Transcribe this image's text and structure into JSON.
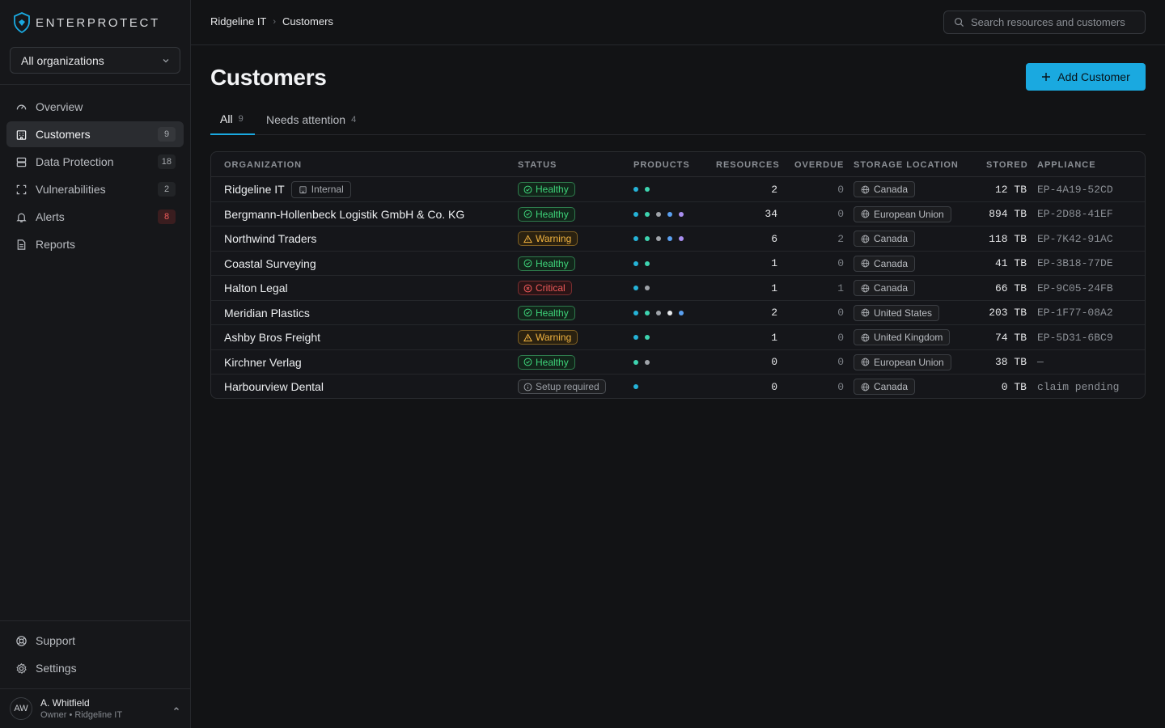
{
  "app": {
    "logo_text": "ENTERPROTECT"
  },
  "org_selector": {
    "value": "All organizations"
  },
  "nav": {
    "items": [
      {
        "label": "Overview",
        "icon": "gauge-icon",
        "badge": ""
      },
      {
        "label": "Customers",
        "icon": "building-icon",
        "badge": "9",
        "active": true
      },
      {
        "label": "Data Protection",
        "icon": "database-icon",
        "badge": "18"
      },
      {
        "label": "Vulnerabilities",
        "icon": "scan-icon",
        "badge": "2"
      },
      {
        "label": "Alerts",
        "icon": "bell-icon",
        "badge": "8",
        "badge_color": "red"
      },
      {
        "label": "Reports",
        "icon": "file-icon",
        "badge": ""
      }
    ],
    "bottom": [
      {
        "label": "Support",
        "icon": "lifebuoy-icon"
      },
      {
        "label": "Settings",
        "icon": "gear-icon"
      }
    ]
  },
  "user": {
    "initials": "AW",
    "name": "A. Whitfield",
    "role": "Owner • Ridgeline IT"
  },
  "breadcrumb": [
    "Ridgeline IT",
    "Customers"
  ],
  "search": {
    "placeholder": "Search resources and customers"
  },
  "page": {
    "title": "Customers",
    "add_label": "Add Customer"
  },
  "tabs": [
    {
      "label": "All",
      "count": "9",
      "active": true
    },
    {
      "label": "Needs attention",
      "count": "4"
    }
  ],
  "table": {
    "headers": [
      "ORGANIZATION",
      "STATUS",
      "PRODUCTS",
      "RESOURCES",
      "OVERDUE",
      "STORAGE LOCATION",
      "STORED",
      "APPLIANCE"
    ],
    "internal_label": "Internal",
    "rows": [
      {
        "org": "Ridgeline IT",
        "internal": true,
        "status": "Healthy",
        "status_kind": "healthy",
        "products": [
          "#25b3d8",
          "#3ed4b0"
        ],
        "resources": "2",
        "overdue": "0",
        "location": "Canada",
        "stored": "12 TB",
        "appliance": "EP-4A19-52CD"
      },
      {
        "org": "Bergmann-Hollenbeck Logistik GmbH & Co. KG",
        "status": "Healthy",
        "status_kind": "healthy",
        "products": [
          "#25b3d8",
          "#3ed4b0",
          "#a0a4aa",
          "#5aa0f0",
          "#a98ef0"
        ],
        "resources": "34",
        "overdue": "0",
        "location": "European Union",
        "stored": "894 TB",
        "appliance": "EP-2D88-41EF"
      },
      {
        "org": "Northwind Traders",
        "status": "Warning",
        "status_kind": "warning",
        "products": [
          "#25b3d8",
          "#3ed4b0",
          "#a0a4aa",
          "#5aa0f0",
          "#a98ef0"
        ],
        "resources": "6",
        "overdue": "2",
        "location": "Canada",
        "stored": "118 TB",
        "appliance": "EP-7K42-91AC"
      },
      {
        "org": "Coastal Surveying",
        "status": "Healthy",
        "status_kind": "healthy",
        "products": [
          "#25b3d8",
          "#3ed4b0"
        ],
        "resources": "1",
        "overdue": "0",
        "location": "Canada",
        "stored": "41 TB",
        "appliance": "EP-3B18-77DE"
      },
      {
        "org": "Halton Legal",
        "status": "Critical",
        "status_kind": "critical",
        "products": [
          "#25b3d8",
          "#a0a4aa"
        ],
        "resources": "1",
        "overdue": "1",
        "location": "Canada",
        "stored": "66 TB",
        "appliance": "EP-9C05-24FB"
      },
      {
        "org": "Meridian Plastics",
        "status": "Healthy",
        "status_kind": "healthy",
        "products": [
          "#25b3d8",
          "#3ed4b0",
          "#a0a4aa",
          "#e8eaec",
          "#5aa0f0"
        ],
        "resources": "2",
        "overdue": "0",
        "location": "United States",
        "stored": "203 TB",
        "appliance": "EP-1F77-08A2"
      },
      {
        "org": "Ashby Bros Freight",
        "status": "Warning",
        "status_kind": "warning",
        "products": [
          "#25b3d8",
          "#3ed4b0"
        ],
        "resources": "1",
        "overdue": "0",
        "location": "United Kingdom",
        "stored": "74 TB",
        "appliance": "EP-5D31-6BC9"
      },
      {
        "org": "Kirchner Verlag",
        "status": "Healthy",
        "status_kind": "healthy",
        "products": [
          "#3ed4b0",
          "#a0a4aa"
        ],
        "resources": "0",
        "overdue": "0",
        "location": "European Union",
        "stored": "38 TB",
        "appliance": "—"
      },
      {
        "org": "Harbourview Dental",
        "status": "Setup required",
        "status_kind": "setup",
        "products": [
          "#25b3d8"
        ],
        "resources": "0",
        "overdue": "0",
        "location": "Canada",
        "stored": "0 TB",
        "appliance": "claim pending"
      }
    ]
  }
}
